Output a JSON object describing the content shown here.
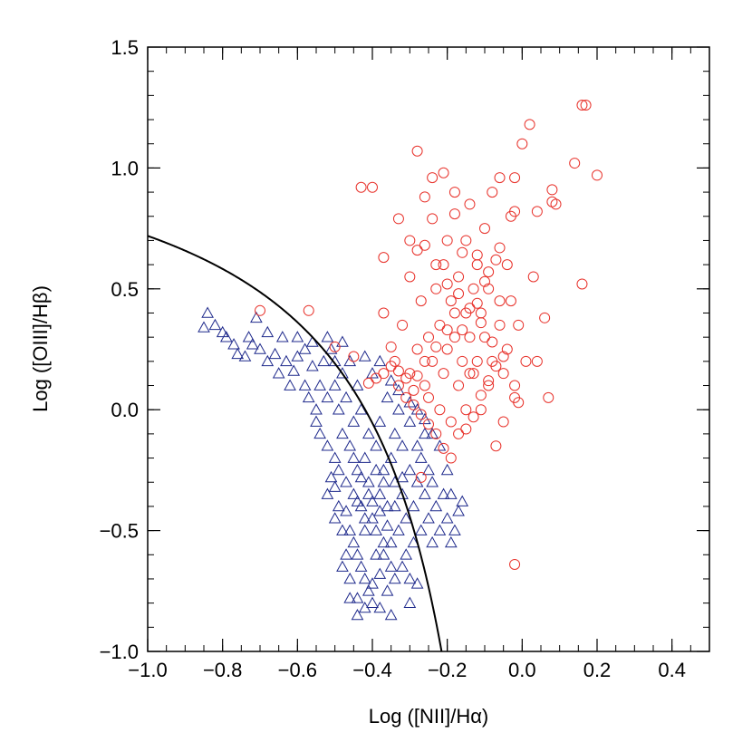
{
  "chart_data": {
    "type": "scatter",
    "xlabel": "Log ([NII]/Hα)",
    "ylabel": "Log ([OIII]/Hβ)",
    "xlim": [
      -1.0,
      0.5
    ],
    "ylim": [
      -1.0,
      1.5
    ],
    "x_ticks": [
      -1.0,
      -0.8,
      -0.6,
      -0.4,
      -0.2,
      0.0,
      0.2,
      0.4
    ],
    "x_tick_labels": [
      "−1.0",
      "−0.8",
      "−0.6",
      "−0.4",
      "−0.2",
      "0.0",
      "0.2",
      "0.4"
    ],
    "y_ticks": [
      -1.0,
      -0.5,
      0.0,
      0.5,
      1.0,
      1.5
    ],
    "y_tick_labels": [
      "−1.0",
      "−0.5",
      "0.0",
      "0.5",
      "1.0",
      "1.5"
    ],
    "grid": false,
    "colors": {
      "star_forming": "#1f2a8c",
      "agn": "#e8322b",
      "curve": "#000000"
    },
    "curve": {
      "label": "",
      "formula": "y = 0.61 / (x - 0.05) + 1.3",
      "x_range": [
        -1.0,
        0.05
      ]
    },
    "series": [
      {
        "marker": "triangle",
        "color": "#1f2a8c",
        "points": [
          [
            -0.84,
            0.4
          ],
          [
            -0.85,
            0.34
          ],
          [
            -0.82,
            0.35
          ],
          [
            -0.79,
            0.3
          ],
          [
            -0.77,
            0.27
          ],
          [
            -0.76,
            0.23
          ],
          [
            -0.74,
            0.22
          ],
          [
            -0.72,
            0.27
          ],
          [
            -0.71,
            0.38
          ],
          [
            -0.7,
            0.25
          ],
          [
            -0.68,
            0.2
          ],
          [
            -0.66,
            0.23
          ],
          [
            -0.65,
            0.15
          ],
          [
            -0.63,
            0.2
          ],
          [
            -0.62,
            0.1
          ],
          [
            -0.61,
            0.16
          ],
          [
            -0.6,
            0.3
          ],
          [
            -0.58,
            0.25
          ],
          [
            -0.58,
            0.1
          ],
          [
            -0.57,
            0.05
          ],
          [
            -0.56,
            0.18
          ],
          [
            -0.55,
            0.0
          ],
          [
            -0.55,
            -0.05
          ],
          [
            -0.54,
            0.1
          ],
          [
            -0.54,
            -0.1
          ],
          [
            -0.53,
            0.2
          ],
          [
            -0.52,
            0.05
          ],
          [
            -0.52,
            -0.15
          ],
          [
            -0.51,
            0.25
          ],
          [
            -0.5,
            0.1
          ],
          [
            -0.5,
            -0.2
          ],
          [
            -0.49,
            0.0
          ],
          [
            -0.49,
            -0.25
          ],
          [
            -0.48,
            0.15
          ],
          [
            -0.48,
            -0.1
          ],
          [
            -0.47,
            0.05
          ],
          [
            -0.47,
            -0.3
          ],
          [
            -0.46,
            -0.15
          ],
          [
            -0.46,
            0.2
          ],
          [
            -0.45,
            -0.05
          ],
          [
            -0.45,
            -0.35
          ],
          [
            -0.44,
            0.1
          ],
          [
            -0.44,
            -0.25
          ],
          [
            -0.43,
            -0.4
          ],
          [
            -0.43,
            0.0
          ],
          [
            -0.42,
            -0.2
          ],
          [
            -0.42,
            -0.5
          ],
          [
            -0.41,
            -0.1
          ],
          [
            -0.41,
            -0.3
          ],
          [
            -0.4,
            0.15
          ],
          [
            -0.4,
            -0.45
          ],
          [
            -0.39,
            -0.15
          ],
          [
            -0.39,
            -0.6
          ],
          [
            -0.38,
            -0.05
          ],
          [
            -0.38,
            -0.35
          ],
          [
            -0.37,
            -0.25
          ],
          [
            -0.37,
            -0.55
          ],
          [
            -0.36,
            0.05
          ],
          [
            -0.36,
            -0.4
          ],
          [
            -0.35,
            -0.2
          ],
          [
            -0.35,
            -0.65
          ],
          [
            -0.34,
            -0.3
          ],
          [
            -0.34,
            -0.1
          ],
          [
            -0.33,
            -0.5
          ],
          [
            -0.33,
            0.0
          ],
          [
            -0.32,
            -0.35
          ],
          [
            -0.32,
            -0.15
          ],
          [
            -0.31,
            -0.45
          ],
          [
            -0.31,
            -0.6
          ],
          [
            -0.3,
            -0.25
          ],
          [
            -0.3,
            -0.05
          ],
          [
            -0.29,
            -0.4
          ],
          [
            -0.29,
            -0.55
          ],
          [
            -0.28,
            -0.3
          ],
          [
            -0.28,
            -0.15
          ],
          [
            -0.27,
            -0.2
          ],
          [
            -0.27,
            -0.5
          ],
          [
            -0.26,
            -0.35
          ],
          [
            -0.26,
            -0.1
          ],
          [
            -0.25,
            -0.45
          ],
          [
            -0.25,
            -0.25
          ],
          [
            -0.24,
            -0.3
          ],
          [
            -0.24,
            -0.55
          ],
          [
            -0.23,
            -0.4
          ],
          [
            -0.22,
            -0.5
          ],
          [
            -0.21,
            -0.35
          ],
          [
            -0.2,
            -0.45
          ],
          [
            -0.19,
            -0.55
          ],
          [
            -0.18,
            -0.5
          ],
          [
            -0.47,
            -0.42
          ],
          [
            -0.46,
            -0.5
          ],
          [
            -0.45,
            -0.55
          ],
          [
            -0.44,
            -0.6
          ],
          [
            -0.43,
            -0.65
          ],
          [
            -0.42,
            -0.7
          ],
          [
            -0.41,
            -0.75
          ],
          [
            -0.4,
            -0.8
          ],
          [
            -0.42,
            -0.82
          ],
          [
            -0.44,
            -0.85
          ],
          [
            -0.44,
            -0.78
          ],
          [
            -0.46,
            -0.7
          ],
          [
            -0.47,
            -0.6
          ],
          [
            -0.48,
            -0.5
          ],
          [
            -0.49,
            -0.4
          ],
          [
            -0.5,
            -0.32
          ],
          [
            -0.51,
            -0.28
          ],
          [
            -0.52,
            -0.35
          ],
          [
            -0.5,
            -0.45
          ],
          [
            -0.48,
            -0.65
          ],
          [
            -0.46,
            -0.78
          ],
          [
            -0.4,
            -0.72
          ],
          [
            -0.38,
            -0.68
          ],
          [
            -0.36,
            -0.75
          ],
          [
            -0.34,
            -0.7
          ],
          [
            -0.32,
            -0.65
          ],
          [
            -0.3,
            -0.7
          ],
          [
            -0.28,
            -0.72
          ],
          [
            -0.38,
            -0.82
          ],
          [
            -0.35,
            -0.85
          ],
          [
            -0.3,
            -0.8
          ],
          [
            -0.5,
            0.2
          ],
          [
            -0.48,
            0.28
          ],
          [
            -0.52,
            0.3
          ],
          [
            -0.56,
            0.28
          ],
          [
            -0.6,
            0.22
          ],
          [
            -0.64,
            0.3
          ],
          [
            -0.68,
            0.32
          ],
          [
            -0.73,
            0.3
          ],
          [
            -0.8,
            0.32
          ],
          [
            -0.42,
            0.22
          ],
          [
            -0.38,
            0.2
          ],
          [
            -0.35,
            0.12
          ],
          [
            -0.33,
            0.08
          ],
          [
            -0.3,
            0.03
          ],
          [
            -0.28,
            0.0
          ],
          [
            -0.26,
            -0.04
          ],
          [
            -0.24,
            -0.1
          ],
          [
            -0.22,
            -0.15
          ],
          [
            -0.2,
            -0.25
          ],
          [
            -0.19,
            -0.35
          ],
          [
            -0.17,
            -0.42
          ],
          [
            -0.16,
            -0.38
          ],
          [
            -0.37,
            -0.3
          ],
          [
            -0.39,
            -0.25
          ],
          [
            -0.41,
            -0.35
          ],
          [
            -0.43,
            -0.28
          ],
          [
            -0.45,
            -0.2
          ],
          [
            -0.4,
            -0.38
          ],
          [
            -0.38,
            -0.42
          ],
          [
            -0.36,
            -0.48
          ],
          [
            -0.34,
            -0.4
          ],
          [
            -0.32,
            -0.28
          ],
          [
            -0.35,
            -0.55
          ],
          [
            -0.37,
            -0.6
          ],
          [
            -0.39,
            -0.5
          ],
          [
            -0.42,
            -0.45
          ],
          [
            -0.44,
            -0.38
          ]
        ]
      },
      {
        "marker": "circle",
        "color": "#e8322b",
        "points": [
          [
            -0.7,
            0.41
          ],
          [
            -0.57,
            0.41
          ],
          [
            -0.5,
            0.26
          ],
          [
            -0.45,
            0.22
          ],
          [
            -0.43,
            0.92
          ],
          [
            -0.4,
            0.92
          ],
          [
            -0.37,
            0.63
          ],
          [
            -0.37,
            0.4
          ],
          [
            -0.35,
            0.18
          ],
          [
            -0.33,
            0.16
          ],
          [
            -0.32,
            0.35
          ],
          [
            -0.3,
            0.55
          ],
          [
            -0.3,
            0.15
          ],
          [
            -0.29,
            0.08
          ],
          [
            -0.28,
            0.66
          ],
          [
            -0.28,
            0.25
          ],
          [
            -0.27,
            0.45
          ],
          [
            -0.26,
            0.1
          ],
          [
            -0.25,
            0.3
          ],
          [
            -0.25,
            0.05
          ],
          [
            -0.24,
            0.2
          ],
          [
            -0.24,
            0.79
          ],
          [
            -0.23,
            0.5
          ],
          [
            -0.22,
            0.35
          ],
          [
            -0.22,
            0.0
          ],
          [
            -0.21,
            0.6
          ],
          [
            -0.21,
            0.15
          ],
          [
            -0.2,
            0.7
          ],
          [
            -0.2,
            0.25
          ],
          [
            -0.19,
            0.45
          ],
          [
            -0.19,
            -0.05
          ],
          [
            -0.18,
            0.9
          ],
          [
            -0.18,
            0.3
          ],
          [
            -0.17,
            0.1
          ],
          [
            -0.17,
            0.55
          ],
          [
            -0.16,
            0.2
          ],
          [
            -0.16,
            0.65
          ],
          [
            -0.15,
            0.4
          ],
          [
            -0.15,
            0.0
          ],
          [
            -0.14,
            0.3
          ],
          [
            -0.14,
            0.85
          ],
          [
            -0.13,
            0.15
          ],
          [
            -0.13,
            0.5
          ],
          [
            -0.12,
            0.6
          ],
          [
            -0.12,
            0.2
          ],
          [
            -0.11,
            0.4
          ],
          [
            -0.11,
            0.0
          ],
          [
            -0.1,
            0.75
          ],
          [
            -0.1,
            0.3
          ],
          [
            -0.09,
            0.1
          ],
          [
            -0.09,
            0.5
          ],
          [
            -0.08,
            0.9
          ],
          [
            -0.08,
            0.2
          ],
          [
            -0.07,
            0.62
          ],
          [
            -0.07,
            -0.15
          ],
          [
            -0.06,
            0.35
          ],
          [
            -0.06,
            0.96
          ],
          [
            -0.05,
            0.15
          ],
          [
            -0.05,
            -0.05
          ],
          [
            -0.04,
            0.25
          ],
          [
            -0.03,
            0.8
          ],
          [
            -0.03,
            0.45
          ],
          [
            -0.02,
            0.05
          ],
          [
            -0.02,
            0.96
          ],
          [
            -0.01,
            0.35
          ],
          [
            0.0,
            1.1
          ],
          [
            0.01,
            0.2
          ],
          [
            0.02,
            1.18
          ],
          [
            0.03,
            0.55
          ],
          [
            0.04,
            0.82
          ],
          [
            0.06,
            0.38
          ],
          [
            0.07,
            0.05
          ],
          [
            0.08,
            0.86
          ],
          [
            0.09,
            0.85
          ],
          [
            0.14,
            1.02
          ],
          [
            0.16,
            1.26
          ],
          [
            0.17,
            1.26
          ],
          [
            0.16,
            0.52
          ],
          [
            0.2,
            0.97
          ],
          [
            -0.28,
            1.07
          ],
          [
            -0.26,
            0.88
          ],
          [
            -0.24,
            0.96
          ],
          [
            -0.21,
            0.98
          ],
          [
            -0.15,
            0.7
          ],
          [
            -0.12,
            0.64
          ],
          [
            -0.18,
            0.81
          ],
          [
            -0.33,
            0.79
          ],
          [
            -0.3,
            0.7
          ],
          [
            -0.26,
            0.68
          ],
          [
            -0.23,
            0.6
          ],
          [
            -0.2,
            0.52
          ],
          [
            -0.17,
            0.48
          ],
          [
            -0.14,
            0.42
          ],
          [
            -0.11,
            0.36
          ],
          [
            -0.08,
            0.28
          ],
          [
            -0.05,
            0.22
          ],
          [
            -0.02,
            0.1
          ],
          [
            -0.35,
            0.26
          ],
          [
            -0.33,
            0.1
          ],
          [
            -0.31,
            0.05
          ],
          [
            -0.29,
            0.02
          ],
          [
            -0.27,
            -0.02
          ],
          [
            -0.25,
            -0.06
          ],
          [
            -0.23,
            -0.1
          ],
          [
            -0.21,
            -0.16
          ],
          [
            -0.19,
            -0.2
          ],
          [
            -0.17,
            -0.1
          ],
          [
            -0.15,
            -0.08
          ],
          [
            -0.13,
            -0.03
          ],
          [
            -0.11,
            0.06
          ],
          [
            -0.09,
            0.12
          ],
          [
            -0.07,
            0.18
          ],
          [
            -0.27,
            -0.28
          ],
          [
            -0.02,
            -0.64
          ],
          [
            -0.01,
            0.03
          ],
          [
            -0.02,
            0.82
          ],
          [
            -0.04,
            0.6
          ],
          [
            -0.06,
            0.67
          ],
          [
            -0.09,
            0.57
          ],
          [
            -0.1,
            0.53
          ],
          [
            -0.12,
            0.44
          ],
          [
            -0.16,
            0.33
          ],
          [
            -0.18,
            0.4
          ],
          [
            -0.2,
            0.33
          ],
          [
            -0.23,
            0.26
          ],
          [
            -0.26,
            0.2
          ],
          [
            -0.28,
            0.14
          ],
          [
            -0.31,
            0.13
          ],
          [
            -0.34,
            0.2
          ],
          [
            -0.37,
            0.15
          ],
          [
            -0.39,
            0.13
          ],
          [
            -0.41,
            0.11
          ],
          [
            0.08,
            0.91
          ],
          [
            0.04,
            0.2
          ],
          [
            -0.06,
            0.45
          ],
          [
            -0.14,
            0.15
          ]
        ]
      }
    ]
  }
}
